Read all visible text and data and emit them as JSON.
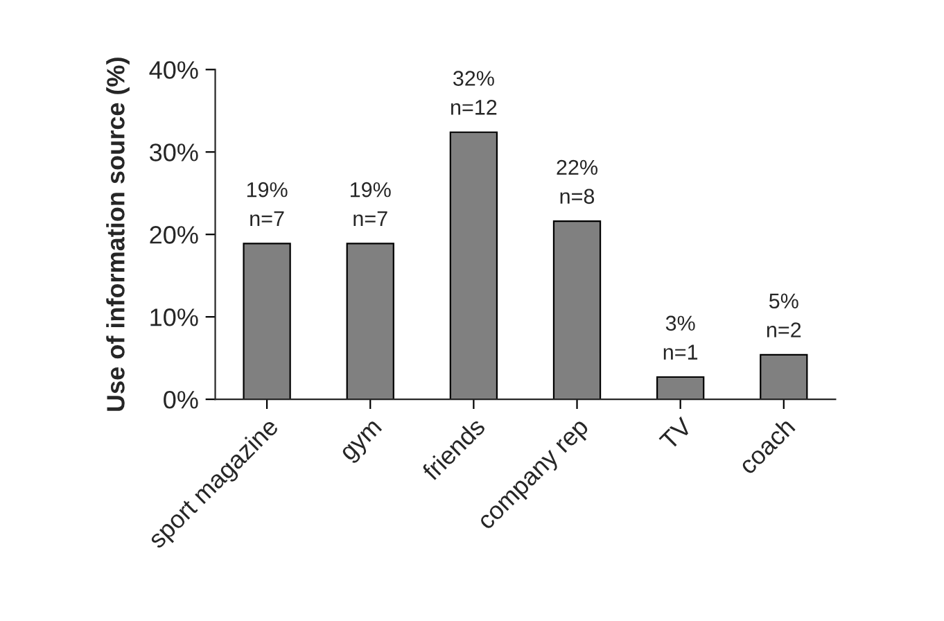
{
  "chart_data": {
    "type": "bar",
    "ylabel": "Use of information source (%)",
    "categories": [
      "sport magazine",
      "gym",
      "friends",
      "company rep",
      "TV",
      "coach"
    ],
    "values": [
      18.9,
      18.9,
      32.4,
      21.6,
      2.7,
      5.4
    ],
    "value_labels": [
      "19%\nn=7",
      "19%\nn=7",
      "32%\nn=12",
      "22%\nn=8",
      "3%\nn=1",
      "5%\nn=2"
    ],
    "color": "#808080",
    "ylim": [
      0,
      40
    ],
    "yticks": [
      {
        "value": 0,
        "label": "0%"
      },
      {
        "value": 10,
        "label": "10%"
      },
      {
        "value": 20,
        "label": "20%"
      },
      {
        "value": 30,
        "label": "30%"
      },
      {
        "value": 40,
        "label": "40%"
      }
    ],
    "grid": false,
    "legend": false
  }
}
